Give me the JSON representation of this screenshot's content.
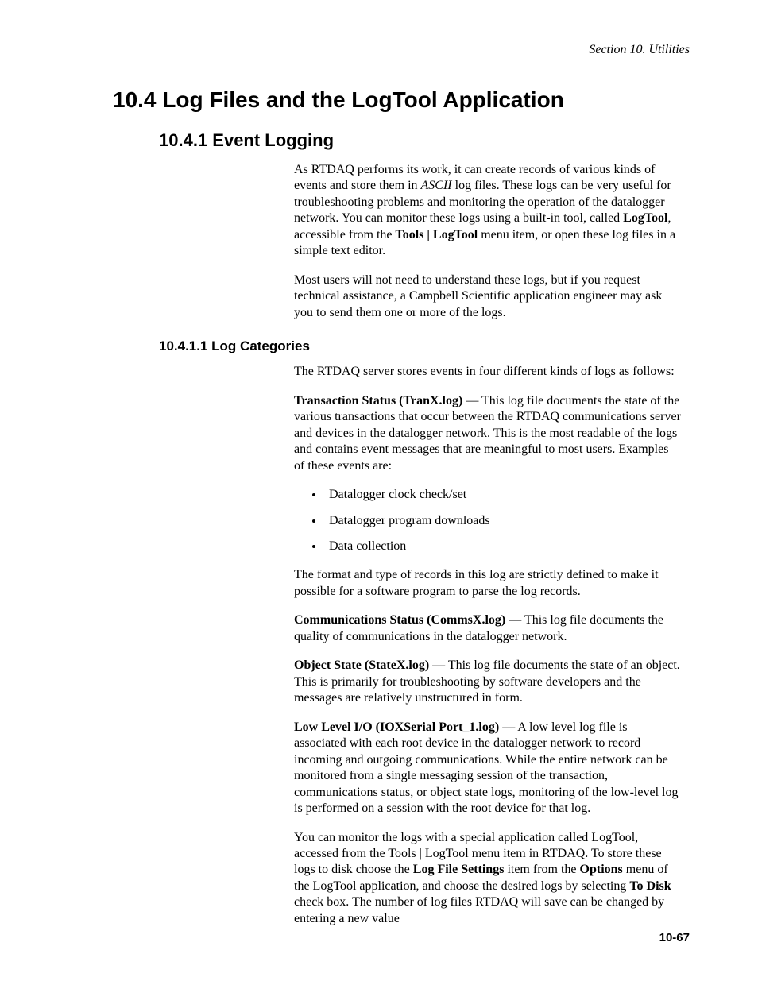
{
  "page": {
    "running_head": "Section 10.  Utilities",
    "page_number": "10-67"
  },
  "h1": "10.4  Log Files and the LogTool Application",
  "h2": "10.4.1  Event Logging",
  "intro": {
    "p1_a": "As RTDAQ performs its work, it can create records of various kinds of events and store them in ",
    "p1_ascii": "ASCII",
    "p1_b": " log files.  These logs can be very useful for troubleshooting problems and monitoring the operation of the datalogger network.  You can monitor these logs using a built-in tool, called ",
    "p1_logtool": "LogTool",
    "p1_c": ", accessible from the ",
    "p1_menu": "Tools | LogTool",
    "p1_d": " menu item, or open these log files in a simple text editor.",
    "p2": "Most users will not need to understand these logs, but if you request technical assistance, a Campbell Scientific application engineer may ask you to send them one or more of the logs."
  },
  "h3": "10.4.1.1  Log Categories",
  "cats": {
    "lead": "The RTDAQ server stores events in four different kinds of logs as follows:",
    "tran_label": "Transaction Status (TranX.log)",
    "tran_text": " — This log file documents the state of the various transactions that occur between the RTDAQ communications server and devices in the datalogger network.  This is the most readable of the logs and contains event messages that are meaningful to most users.  Examples of these events are:",
    "bullets": {
      "b1": "Datalogger clock check/set",
      "b2": "Datalogger program downloads",
      "b3": "Data collection"
    },
    "tran_tail": "The format and type of records in this log are strictly defined to make it possible for a software program to parse the log records.",
    "comm_label": "Communications Status (CommsX.log)",
    "comm_text": " — This log file documents the quality of communications in the datalogger network.",
    "obj_label": "Object State (StateX.log)",
    "obj_text": " — This log file documents the state of an object.  This is primarily for troubleshooting by software developers and the messages are relatively unstructured in form.",
    "low_label": "Low Level I/O (IOXSerial Port_1.log)",
    "low_text": " — A low level log file is associated with each root device in the datalogger network to record incoming and outgoing communications.  While the entire network can be monitored from a single messaging session of the transaction, communications status, or object state logs, monitoring of the low-level log is performed on a session with the root device for that log.",
    "monitor_a": "You can monitor the logs with a special application called LogTool, accessed from the Tools | LogTool menu item in RTDAQ.  To store these logs to disk choose the ",
    "monitor_lfs": "Log File Settings",
    "monitor_b": " item from the ",
    "monitor_opt": "Options",
    "monitor_c": " menu of the LogTool application, and choose the desired logs by selecting ",
    "monitor_td": "To Disk",
    "monitor_d": " check box. The number of log files RTDAQ will save can be changed by entering a new value"
  }
}
